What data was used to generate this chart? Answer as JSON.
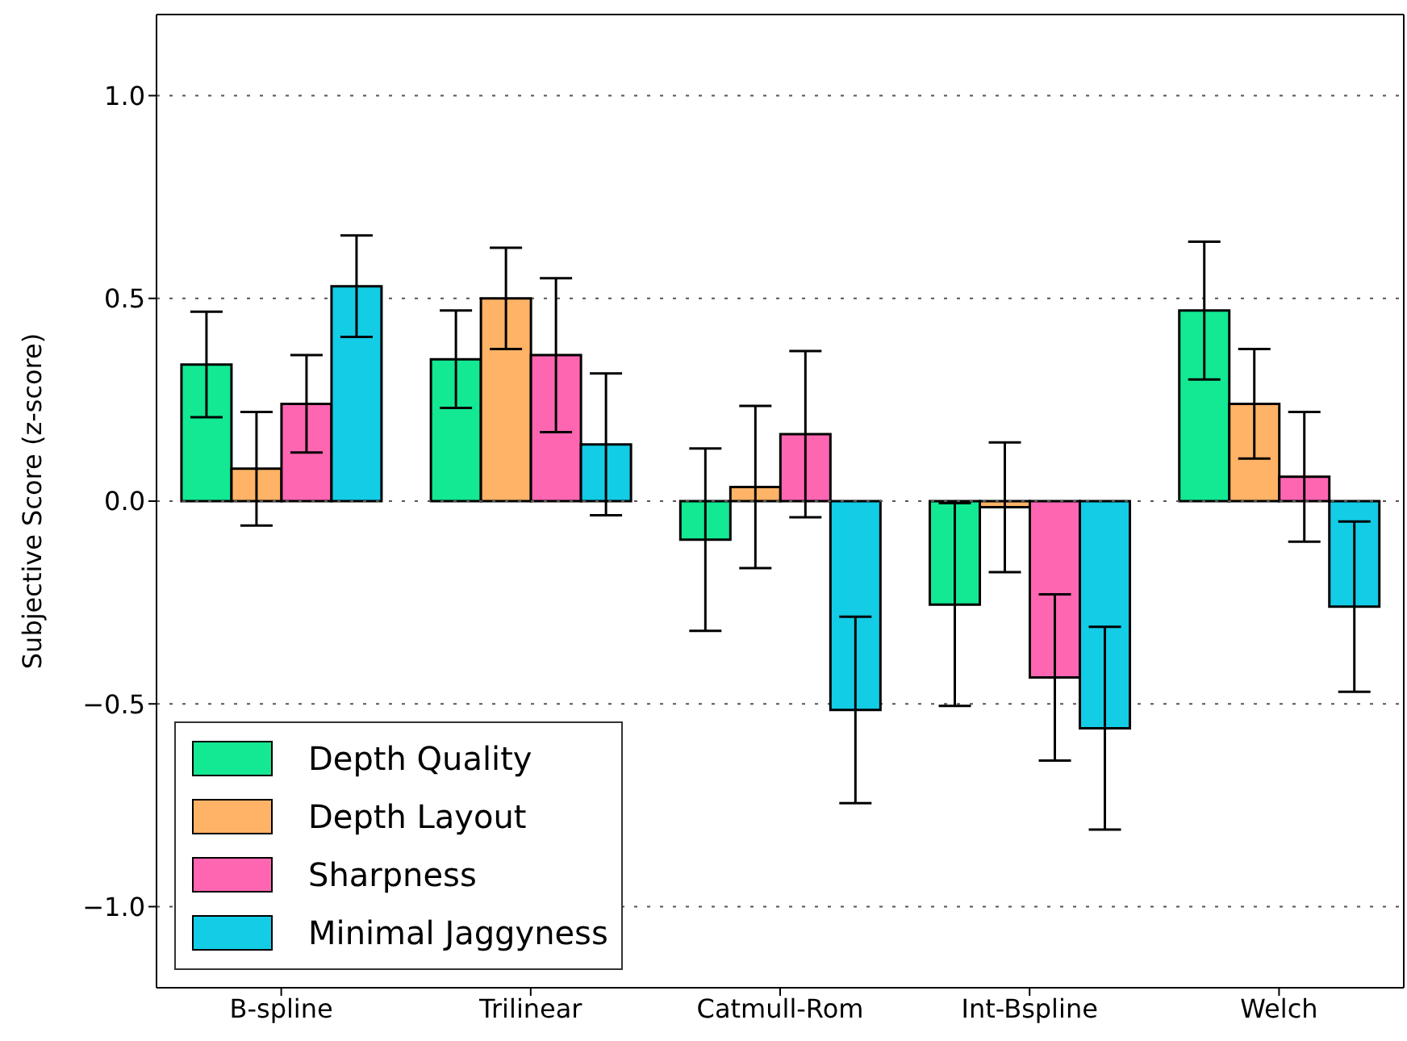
{
  "chart_data": {
    "type": "bar",
    "ylabel": "Subjective Score (z-score)",
    "categories": [
      "B-spline",
      "Trilinear",
      "Catmull-Rom",
      "Int-Bspline",
      "Welch"
    ],
    "series": [
      {
        "name": "Depth Quality",
        "color": "#13e893",
        "values": [
          0.337,
          0.35,
          -0.095,
          -0.255,
          0.47
        ],
        "errors": [
          0.13,
          0.12,
          0.225,
          0.25,
          0.17
        ]
      },
      {
        "name": "Depth Layout",
        "color": "#ffb366",
        "values": [
          0.08,
          0.5,
          0.035,
          -0.015,
          0.24
        ],
        "errors": [
          0.14,
          0.125,
          0.2,
          0.16,
          0.135
        ]
      },
      {
        "name": "Sharpness",
        "color": "#ff66b2",
        "values": [
          0.24,
          0.36,
          0.165,
          -0.435,
          0.06
        ],
        "errors": [
          0.12,
          0.19,
          0.205,
          0.205,
          0.16
        ]
      },
      {
        "name": "Minimal Jaggyness",
        "color": "#13cce6",
        "values": [
          0.53,
          0.14,
          -0.515,
          -0.56,
          -0.26
        ],
        "errors": [
          0.125,
          0.175,
          0.23,
          0.25,
          0.21
        ]
      }
    ],
    "ylim": [
      -1.2,
      1.2
    ],
    "yticks": [
      {
        "value": -1,
        "label": "−1.0"
      },
      {
        "value": -0.5,
        "label": "−0.5"
      },
      {
        "value": 0,
        "label": "0.0"
      },
      {
        "value": 0.5,
        "label": "0.5"
      },
      {
        "value": 1,
        "label": "1.0"
      }
    ],
    "grid": "y",
    "legend": "bottom left"
  }
}
